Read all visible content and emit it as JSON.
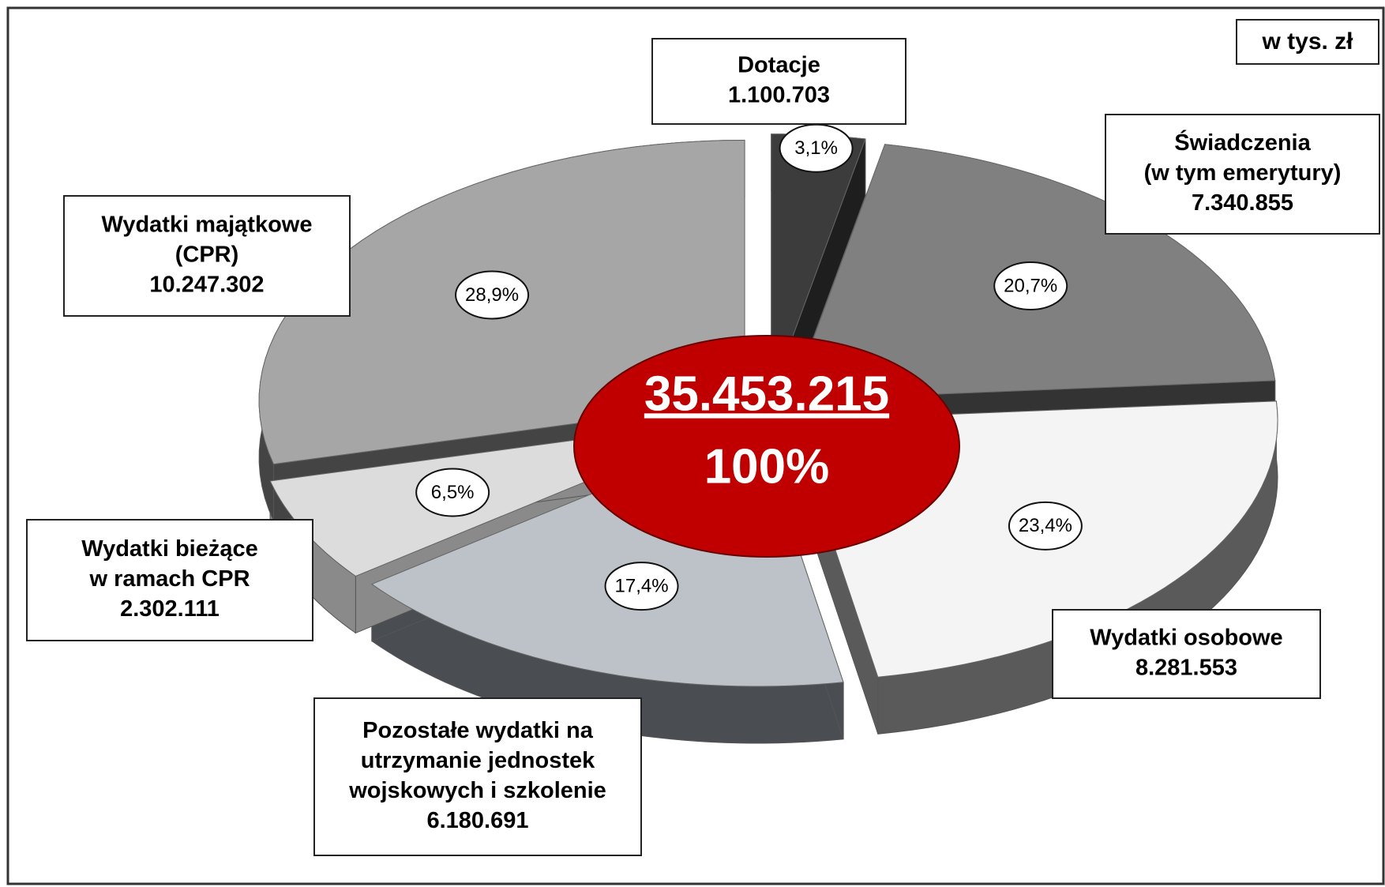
{
  "chart_data": {
    "type": "pie",
    "unit": "w tys. zł",
    "categories": [
      [
        "Dotacje"
      ],
      [
        "Świadczenia",
        "(w tym emerytury)"
      ],
      [
        "Wydatki osobowe"
      ],
      [
        "Pozostałe wydatki na",
        "utrzymanie jednostek",
        "wojskowych i szkolenie"
      ],
      [
        "Wydatki bieżące",
        "w ramach CPR"
      ],
      [
        "Wydatki majątkowe",
        "(CPR)"
      ]
    ],
    "values": [
      1100703,
      7340855,
      8281553,
      6180691,
      2302111,
      10247302
    ],
    "value_labels": [
      "1.100.703",
      "7.340.855",
      "8.281.553",
      "6.180.691",
      "2.302.111",
      "10.247.302"
    ],
    "percents": [
      3.1,
      20.7,
      23.4,
      17.4,
      6.5,
      28.9
    ],
    "percent_labels": [
      "3,1%",
      "20,7%",
      "23,4%",
      "17,4%",
      "6,5%",
      "28,9%"
    ],
    "colors": [
      "#3c3c3c",
      "#808080",
      "#f4f4f4",
      "#bcc2c8",
      "#dcdcdc",
      "#a6a6a6"
    ],
    "side_colors": [
      "#1e1e1e",
      "#333333",
      "#5a5a5a",
      "#4a4e52",
      "#8a8a8a",
      "#444444"
    ],
    "total": 35453215,
    "total_label": "35.453.215",
    "total_share": "100%",
    "center_color": "#c00000"
  }
}
